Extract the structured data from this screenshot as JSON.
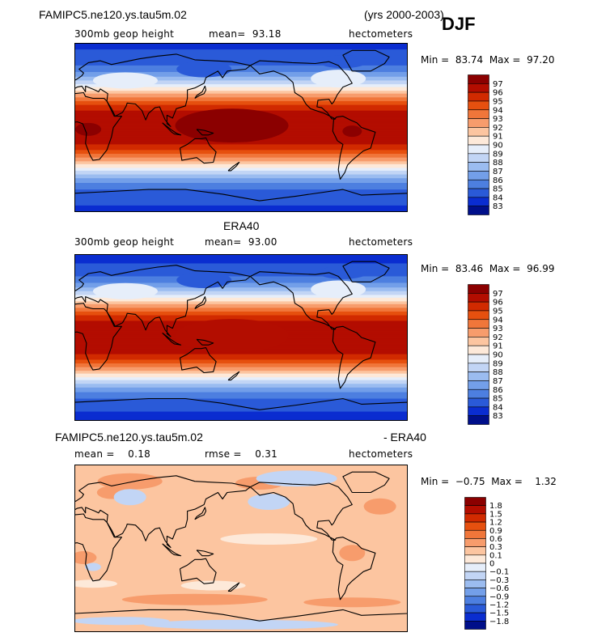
{
  "figure": {
    "run_title": "FAMIPC5.ne120.ys.tau5m.02",
    "years": "(yrs 2000-2003)",
    "season": "DJF"
  },
  "chart_data": [
    {
      "type": "heatmap",
      "title": "FAMIPC5.ne120.ys.tau5m.02",
      "variable": "300mb geop height",
      "mean_label": "mean=",
      "mean": "93.18",
      "units": "hectometers",
      "min_label": "Min =",
      "min": "83.74",
      "max_label": "Max =",
      "max": "97.20",
      "levels": [
        "97",
        "96",
        "95",
        "94",
        "93",
        "92",
        "91",
        "90",
        "89",
        "88",
        "87",
        "86",
        "85",
        "84",
        "83"
      ],
      "colors": [
        "#8b0000",
        "#b30d00",
        "#d12a00",
        "#e6500f",
        "#f0763a",
        "#f79c6c",
        "#fcc5a0",
        "#fde9d9",
        "#e6eefa",
        "#c2d5f5",
        "#9bbcf0",
        "#739fe9",
        "#4d7fe0",
        "#2a5ad8",
        "#0a2dd0",
        "#000f8a"
      ],
      "peak_value": 97.0,
      "subtropic_value": 96.0,
      "polar_value": 83.74
    },
    {
      "type": "heatmap",
      "title": "ERA40",
      "variable": "300mb geop height",
      "mean_label": "mean=",
      "mean": "93.00",
      "units": "hectometers",
      "min_label": "Min =",
      "min": "83.46",
      "max_label": "Max =",
      "max": "96.99",
      "levels": [
        "97",
        "96",
        "95",
        "94",
        "93",
        "92",
        "91",
        "90",
        "89",
        "88",
        "87",
        "86",
        "85",
        "84",
        "83"
      ],
      "colors": [
        "#8b0000",
        "#b30d00",
        "#d12a00",
        "#e6500f",
        "#f0763a",
        "#f79c6c",
        "#fcc5a0",
        "#fde9d9",
        "#e6eefa",
        "#c2d5f5",
        "#9bbcf0",
        "#739fe9",
        "#4d7fe0",
        "#2a5ad8",
        "#0a2dd0",
        "#000f8a"
      ],
      "peak_value": 96.0,
      "subtropic_value": 96.0,
      "polar_value": 83.46
    },
    {
      "type": "heatmap",
      "title_left": "FAMIPC5.ne120.ys.tau5m.02",
      "title_right": "- ERA40",
      "mean_label": "mean =",
      "mean": "0.18",
      "rmse_label": "rmse =",
      "rmse": "0.31",
      "units": "hectometers",
      "min_label": "Min =",
      "min": "−0.75",
      "max_label": "Max =",
      "max": "1.32",
      "levels": [
        "1.8",
        "1.5",
        "1.2",
        "0.9",
        "0.6",
        "0.3",
        "0.1",
        "0",
        "−0.1",
        "−0.3",
        "−0.6",
        "−0.9",
        "−1.2",
        "−1.5",
        "−1.8"
      ],
      "colors": [
        "#8b0000",
        "#b30d00",
        "#d12a00",
        "#e6500f",
        "#f0763a",
        "#f79c6c",
        "#fcc5a0",
        "#fde9d9",
        "#e6eefa",
        "#c2d5f5",
        "#9bbcf0",
        "#739fe9",
        "#4d7fe0",
        "#2a5ad8",
        "#0a2dd0",
        "#000f8a"
      ],
      "background_value": 0.2,
      "warm_patch_value": 0.45,
      "cool_patch_value": -0.2
    }
  ]
}
